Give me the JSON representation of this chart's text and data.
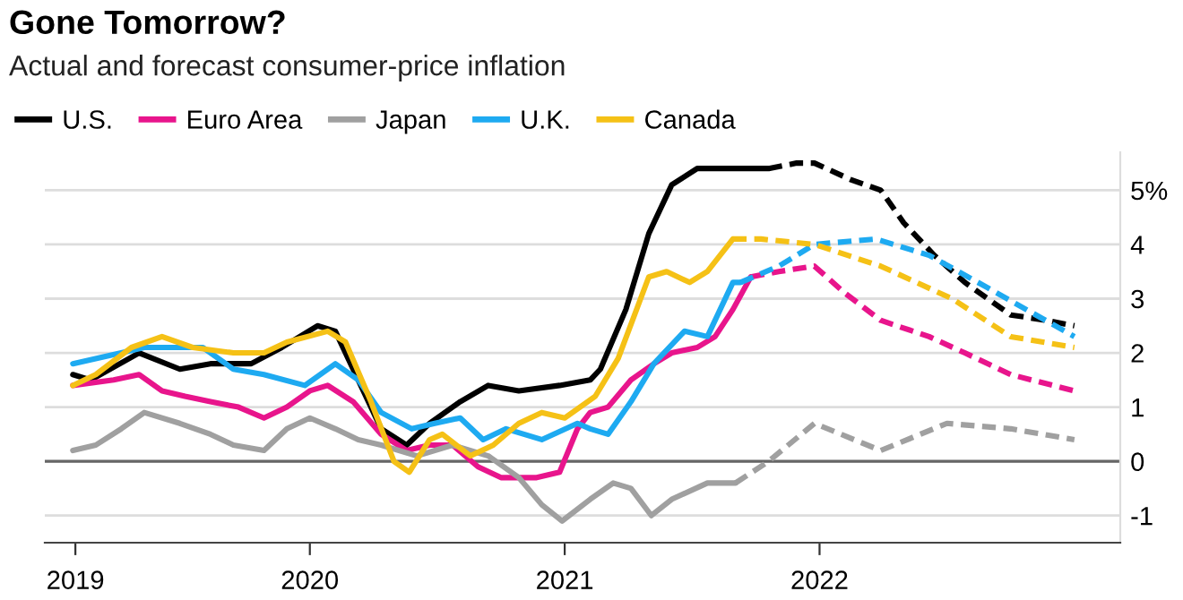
{
  "chart_data": {
    "type": "line",
    "title": "Gone Tomorrow?",
    "subtitle": "Actual and forecast consumer-price inflation",
    "xlim": [
      2018.96,
      2023.18
    ],
    "xticks": [
      {
        "value": 2019.08,
        "label": "2019"
      },
      {
        "value": 2020,
        "label": "2020"
      },
      {
        "value": 2021,
        "label": "2021"
      },
      {
        "value": 2022,
        "label": "2022"
      }
    ],
    "ylim": [
      -1.5,
      5.7
    ],
    "yticks": [
      {
        "value": -1,
        "label": "-1"
      },
      0,
      1,
      2,
      3,
      4,
      {
        "value": 5,
        "label": "5%"
      }
    ],
    "grid": "y",
    "legend": "top left",
    "tick_labels": "xy",
    "marker": "none",
    "ref_lines": [
      {
        "axis": "y",
        "value": 0,
        "color": "#666666"
      }
    ],
    "series": [
      {
        "name": "U.S.",
        "color": "#000000",
        "line_style": "solid",
        "x": [
          2019.07,
          2019.14,
          2019.33,
          2019.49,
          2019.61,
          2019.77,
          2019.89,
          2020.03,
          2020.1,
          2020.19,
          2020.28,
          2020.38,
          2020.47,
          2020.59,
          2020.7,
          2020.82,
          2020.98,
          2021.1,
          2021.14,
          2021.24,
          2021.33,
          2021.42,
          2021.52,
          2021.63,
          2021.73,
          2021.8
        ],
        "values": [
          1.6,
          1.5,
          2.0,
          1.7,
          1.8,
          1.8,
          2.1,
          2.5,
          2.4,
          1.5,
          0.6,
          0.3,
          0.7,
          1.1,
          1.4,
          1.3,
          1.4,
          1.5,
          1.7,
          2.8,
          4.2,
          5.1,
          5.4,
          5.4,
          5.4,
          5.4
        ]
      },
      {
        "name": "Euro Area",
        "color": "#e8158c",
        "line_style": "solid",
        "x": [
          2019.07,
          2019.23,
          2019.33,
          2019.42,
          2019.51,
          2019.61,
          2019.72,
          2019.82,
          2019.91,
          2020.0,
          2020.07,
          2020.17,
          2020.28,
          2020.38,
          2020.47,
          2020.56,
          2020.66,
          2020.75,
          2020.89,
          2020.98,
          2021.05,
          2021.1,
          2021.17,
          2021.26,
          2021.35,
          2021.42,
          2021.52,
          2021.59,
          2021.66,
          2021.73
        ],
        "values": [
          1.4,
          1.5,
          1.6,
          1.3,
          1.2,
          1.1,
          1.0,
          0.8,
          1.0,
          1.3,
          1.4,
          1.1,
          0.5,
          0.2,
          0.3,
          0.3,
          -0.1,
          -0.3,
          -0.3,
          -0.2,
          0.6,
          0.9,
          1.0,
          1.5,
          1.8,
          2.0,
          2.1,
          2.3,
          2.8,
          3.4
        ]
      },
      {
        "name": "Japan",
        "color": "#a0a0a0",
        "line_style": "solid",
        "x": [
          2019.07,
          2019.16,
          2019.26,
          2019.35,
          2019.49,
          2019.61,
          2019.7,
          2019.82,
          2019.91,
          2020.0,
          2020.1,
          2020.19,
          2020.28,
          2020.42,
          2020.56,
          2020.7,
          2020.82,
          2020.91,
          2020.99,
          2021.1,
          2021.19,
          2021.26,
          2021.34,
          2021.42,
          2021.56,
          2021.67
        ],
        "values": [
          0.2,
          0.3,
          0.6,
          0.9,
          0.7,
          0.5,
          0.3,
          0.2,
          0.6,
          0.8,
          0.6,
          0.4,
          0.3,
          0.1,
          0.3,
          0.1,
          -0.3,
          -0.8,
          -1.1,
          -0.7,
          -0.4,
          -0.5,
          -1.0,
          -0.7,
          -0.4,
          -0.4
        ]
      },
      {
        "name": "U.K.",
        "color": "#1eaaf1",
        "line_style": "solid",
        "x": [
          2019.07,
          2019.26,
          2019.35,
          2019.58,
          2019.7,
          2019.82,
          2019.98,
          2020.1,
          2020.19,
          2020.28,
          2020.4,
          2020.49,
          2020.59,
          2020.68,
          2020.77,
          2020.91,
          2021.05,
          2021.1,
          2021.17,
          2021.26,
          2021.35,
          2021.47,
          2021.56,
          2021.66,
          2021.69
        ],
        "values": [
          1.8,
          2.0,
          2.1,
          2.1,
          1.7,
          1.6,
          1.4,
          1.8,
          1.5,
          0.9,
          0.6,
          0.7,
          0.8,
          0.4,
          0.6,
          0.4,
          0.7,
          0.6,
          0.5,
          1.1,
          1.8,
          2.4,
          2.3,
          3.3,
          3.3
        ]
      },
      {
        "name": "Canada",
        "color": "#f5c116",
        "line_style": "solid",
        "x": [
          2019.07,
          2019.16,
          2019.3,
          2019.42,
          2019.54,
          2019.7,
          2019.82,
          2019.91,
          2020.07,
          2020.14,
          2020.24,
          2020.33,
          2020.39,
          2020.47,
          2020.52,
          2020.63,
          2020.72,
          2020.82,
          2020.91,
          2021.0,
          2021.12,
          2021.21,
          2021.33,
          2021.4,
          2021.49,
          2021.56,
          2021.66
        ],
        "values": [
          1.4,
          1.6,
          2.1,
          2.3,
          2.1,
          2.0,
          2.0,
          2.2,
          2.4,
          2.2,
          1.1,
          0.0,
          -0.2,
          0.4,
          0.5,
          0.1,
          0.3,
          0.7,
          0.9,
          0.8,
          1.2,
          1.9,
          3.4,
          3.5,
          3.3,
          3.5,
          4.1
        ]
      },
      {
        "color": "#000000",
        "line_style": "dashed",
        "x": [
          2021.8,
          2021.91,
          2021.98,
          2022.12,
          2022.24,
          2022.33,
          2022.45,
          2022.57,
          2022.75,
          2022.89,
          2023.0
        ],
        "values": [
          5.4,
          5.5,
          5.5,
          5.2,
          5.0,
          4.4,
          3.8,
          3.3,
          2.7,
          2.6,
          2.5
        ]
      },
      {
        "color": "#e8158c",
        "line_style": "dashed",
        "x": [
          2021.73,
          2021.84,
          2021.98,
          2022.1,
          2022.24,
          2022.43,
          2022.57,
          2022.75,
          2023.0
        ],
        "values": [
          3.4,
          3.5,
          3.6,
          3.1,
          2.6,
          2.3,
          2.0,
          1.6,
          1.3
        ]
      },
      {
        "color": "#a0a0a0",
        "line_style": "dashed",
        "x": [
          2021.67,
          2021.8,
          2021.98,
          2022.24,
          2022.5,
          2022.75,
          2023.0
        ],
        "values": [
          -0.4,
          0.0,
          0.7,
          0.2,
          0.7,
          0.6,
          0.4
        ]
      },
      {
        "color": "#1eaaf1",
        "line_style": "dashed",
        "x": [
          2021.69,
          2021.84,
          2021.98,
          2022.22,
          2022.43,
          2022.66,
          2023.0
        ],
        "values": [
          3.3,
          3.6,
          4.0,
          4.1,
          3.8,
          3.2,
          2.3
        ]
      },
      {
        "color": "#f5c116",
        "line_style": "dashed",
        "x": [
          2021.66,
          2021.77,
          2021.98,
          2022.24,
          2022.52,
          2022.75,
          2023.0
        ],
        "values": [
          4.1,
          4.1,
          4.0,
          3.6,
          3.0,
          2.3,
          2.1
        ]
      }
    ]
  }
}
